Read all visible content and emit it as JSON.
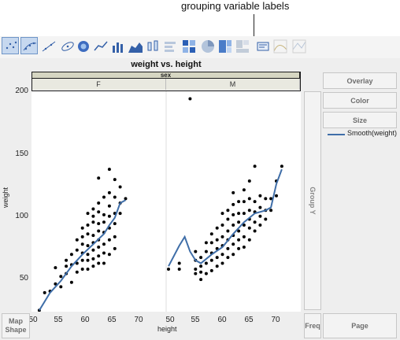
{
  "callout": {
    "text": "grouping variable labels"
  },
  "toolbar": {
    "icons": [
      "scatter-points-icon",
      "scatter-smooth-icon",
      "scatter-fit-line-icon",
      "ellipse-icon",
      "contour-icon",
      "line-chart-icon",
      "bar-chart-icon",
      "area-chart-icon",
      "box-plot-icon",
      "histogram-icon",
      "heatmap-icon",
      "pie-chart-icon",
      "treemap-icon",
      "mosaic-icon",
      "caption-box-icon",
      "line-of-fit-icon",
      "parallel-plot-icon"
    ]
  },
  "graph": {
    "title": "weight vs. height",
    "facet_variable": "sex",
    "facets": [
      "F",
      "M"
    ],
    "xlabel": "height",
    "ylabel": "weight",
    "x_ticks_left": [
      "50",
      "55",
      "60",
      "65",
      "70"
    ],
    "x_ticks_right": [
      "50",
      "55",
      "60",
      "65",
      "70"
    ],
    "y_ticks": [
      "50",
      "100",
      "150",
      "200"
    ]
  },
  "zones": {
    "overlay": "Overlay",
    "color": "Color",
    "size": "Size",
    "group_y": "Group Y",
    "map_shape": "Map Shape",
    "freq": "Freq",
    "page": "Page"
  },
  "legend": {
    "label": "Smooth(weight)"
  },
  "colors": {
    "smooth": "#3f6ea8",
    "points": "#000000",
    "selected_tool": "#c6d8ef"
  },
  "chart_data": [
    {
      "type": "scatter",
      "facet": "F",
      "xlim": [
        50,
        70
      ],
      "ylim": [
        50,
        200
      ],
      "points": [
        [
          51,
          52
        ],
        [
          52,
          64
        ],
        [
          53,
          65
        ],
        [
          54,
          70
        ],
        [
          54,
          81
        ],
        [
          55,
          68
        ],
        [
          55,
          75
        ],
        [
          56,
          77
        ],
        [
          56,
          82
        ],
        [
          56,
          86
        ],
        [
          57,
          71
        ],
        [
          57,
          83
        ],
        [
          57,
          90
        ],
        [
          58,
          78
        ],
        [
          58,
          84
        ],
        [
          58,
          93
        ],
        [
          58,
          100
        ],
        [
          59,
          80
        ],
        [
          59,
          86
        ],
        [
          59,
          91
        ],
        [
          59,
          97
        ],
        [
          59,
          102
        ],
        [
          59,
          108
        ],
        [
          60,
          80
        ],
        [
          60,
          86
        ],
        [
          60,
          90
        ],
        [
          60,
          96
        ],
        [
          60,
          104
        ],
        [
          60,
          110
        ],
        [
          60,
          118
        ],
        [
          61,
          82
        ],
        [
          61,
          87
        ],
        [
          61,
          93
        ],
        [
          61,
          98
        ],
        [
          61,
          103
        ],
        [
          61,
          112
        ],
        [
          61,
          116
        ],
        [
          61,
          121
        ],
        [
          62,
          84
        ],
        [
          62,
          89
        ],
        [
          62,
          95
        ],
        [
          62,
          100
        ],
        [
          62,
          106
        ],
        [
          62,
          111
        ],
        [
          62,
          119
        ],
        [
          62,
          125
        ],
        [
          62,
          142
        ],
        [
          63,
          84
        ],
        [
          63,
          91
        ],
        [
          63,
          97
        ],
        [
          63,
          105
        ],
        [
          63,
          112
        ],
        [
          63,
          117
        ],
        [
          63,
          129
        ],
        [
          64,
          90
        ],
        [
          64,
          100
        ],
        [
          64,
          108
        ],
        [
          64,
          116
        ],
        [
          64,
          123
        ],
        [
          64,
          132
        ],
        [
          64,
          148
        ],
        [
          65,
          94
        ],
        [
          65,
          102
        ],
        [
          65,
          111
        ],
        [
          65,
          118
        ],
        [
          65,
          129
        ],
        [
          65,
          141
        ],
        [
          66,
          118
        ],
        [
          66,
          125
        ],
        [
          66,
          136
        ],
        [
          67,
          128
        ]
      ],
      "smooth": [
        [
          51,
          52
        ],
        [
          53,
          64
        ],
        [
          55,
          72
        ],
        [
          57,
          82
        ],
        [
          59,
          90
        ],
        [
          61,
          97
        ],
        [
          63,
          104
        ],
        [
          64,
          110
        ],
        [
          65,
          115
        ],
        [
          66,
          125
        ],
        [
          67,
          127
        ]
      ]
    },
    {
      "type": "scatter",
      "facet": "M",
      "xlim": [
        50,
        70
      ],
      "ylim": [
        50,
        200
      ],
      "points": [
        [
          50,
          80
        ],
        [
          52,
          80
        ],
        [
          52,
          84
        ],
        [
          54,
          196
        ],
        [
          55,
          77
        ],
        [
          55,
          80
        ],
        [
          55,
          86
        ],
        [
          55,
          92
        ],
        [
          56,
          73
        ],
        [
          56,
          78
        ],
        [
          56,
          82
        ],
        [
          56,
          88
        ],
        [
          57,
          77
        ],
        [
          57,
          84
        ],
        [
          57,
          92
        ],
        [
          57,
          98
        ],
        [
          58,
          79
        ],
        [
          58,
          86
        ],
        [
          58,
          91
        ],
        [
          58,
          98
        ],
        [
          58,
          104
        ],
        [
          59,
          82
        ],
        [
          59,
          88
        ],
        [
          59,
          94
        ],
        [
          59,
          100
        ],
        [
          59,
          108
        ],
        [
          60,
          84
        ],
        [
          60,
          90
        ],
        [
          60,
          96
        ],
        [
          60,
          102
        ],
        [
          60,
          110
        ],
        [
          60,
          118
        ],
        [
          61,
          88
        ],
        [
          61,
          94
        ],
        [
          61,
          100
        ],
        [
          61,
          106
        ],
        [
          61,
          114
        ],
        [
          61,
          120
        ],
        [
          62,
          90
        ],
        [
          62,
          97
        ],
        [
          62,
          103
        ],
        [
          62,
          110
        ],
        [
          62,
          117
        ],
        [
          62,
          124
        ],
        [
          62,
          132
        ],
        [
          63,
          94
        ],
        [
          63,
          100
        ],
        [
          63,
          106
        ],
        [
          63,
          112
        ],
        [
          63,
          118
        ],
        [
          63,
          126
        ],
        [
          64,
          95
        ],
        [
          64,
          102
        ],
        [
          64,
          110
        ],
        [
          64,
          118
        ],
        [
          64,
          126
        ],
        [
          64,
          134
        ],
        [
          65,
          100
        ],
        [
          65,
          108
        ],
        [
          65,
          114
        ],
        [
          65,
          120
        ],
        [
          65,
          128
        ],
        [
          65,
          140
        ],
        [
          66,
          106
        ],
        [
          66,
          112
        ],
        [
          66,
          119
        ],
        [
          66,
          126
        ],
        [
          66,
          150
        ],
        [
          67,
          110
        ],
        [
          67,
          116
        ],
        [
          67,
          122
        ],
        [
          67,
          130
        ],
        [
          68,
          114
        ],
        [
          68,
          120
        ],
        [
          68,
          128
        ],
        [
          69,
          120
        ],
        [
          69,
          128
        ],
        [
          70,
          130
        ],
        [
          70,
          140
        ],
        [
          71,
          150
        ]
      ],
      "smooth": [
        [
          50,
          82
        ],
        [
          52,
          96
        ],
        [
          53,
          102
        ],
        [
          54,
          92
        ],
        [
          55,
          86
        ],
        [
          56,
          84
        ],
        [
          58,
          90
        ],
        [
          60,
          95
        ],
        [
          62,
          104
        ],
        [
          64,
          112
        ],
        [
          66,
          118
        ],
        [
          68,
          120
        ],
        [
          69,
          122
        ],
        [
          70,
          138
        ],
        [
          71,
          148
        ]
      ]
    }
  ]
}
